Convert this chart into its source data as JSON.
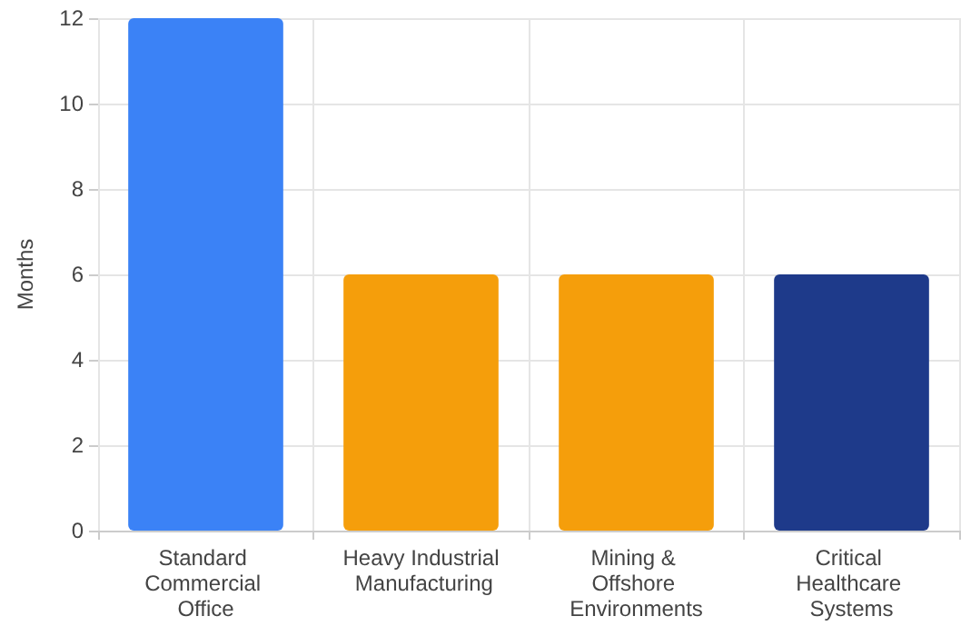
{
  "chart_data": {
    "type": "bar",
    "ylabel": "Months",
    "categories": [
      "Standard Commercial Office",
      "Heavy Industrial Manufacturing",
      "Mining & Offshore Environments",
      "Critical Healthcare Systems"
    ],
    "values": [
      12,
      6,
      6,
      6
    ],
    "colors": [
      "#3b82f6",
      "#f59e0b",
      "#f59e0b",
      "#1e3a8a"
    ],
    "ylim": [
      0,
      12
    ],
    "yticks": [
      0,
      2,
      4,
      6,
      8,
      10,
      12
    ],
    "grid": true
  }
}
